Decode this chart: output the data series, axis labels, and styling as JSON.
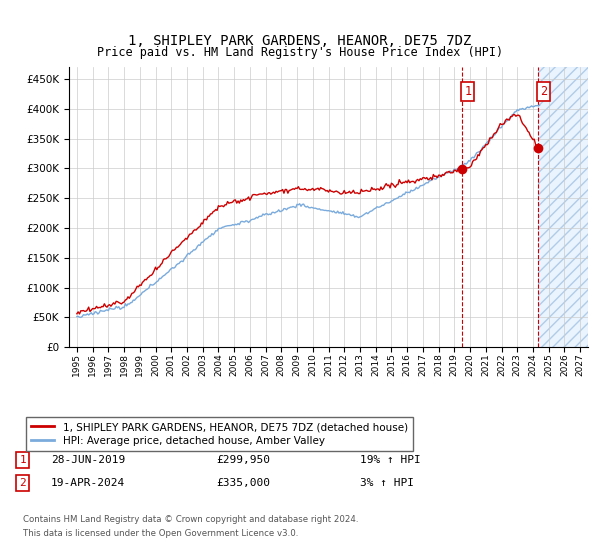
{
  "title": "1, SHIPLEY PARK GARDENS, HEANOR, DE75 7DZ",
  "subtitle": "Price paid vs. HM Land Registry's House Price Index (HPI)",
  "sale1_date": "28-JUN-2019",
  "sale1_price": 299950,
  "sale1_label": "£299,950",
  "sale1_pct": "19% ↑ HPI",
  "sale1_year": 2019.49,
  "sale2_date": "19-APR-2024",
  "sale2_price": 335000,
  "sale2_label": "£335,000",
  "sale2_pct": "3% ↑ HPI",
  "sale2_year": 2024.29,
  "legend_label1": "1, SHIPLEY PARK GARDENS, HEANOR, DE75 7DZ (detached house)",
  "legend_label2": "HPI: Average price, detached house, Amber Valley",
  "footer1": "Contains HM Land Registry data © Crown copyright and database right 2024.",
  "footer2": "This data is licensed under the Open Government Licence v3.0.",
  "red_color": "#cc0000",
  "blue_color": "#7aabdc",
  "shade_color": "#ddeeff",
  "hatch_color": "#99bbdd",
  "ylim_min": 0,
  "ylim_max": 470000,
  "xlim_min": 1994.5,
  "xlim_max": 2027.5
}
